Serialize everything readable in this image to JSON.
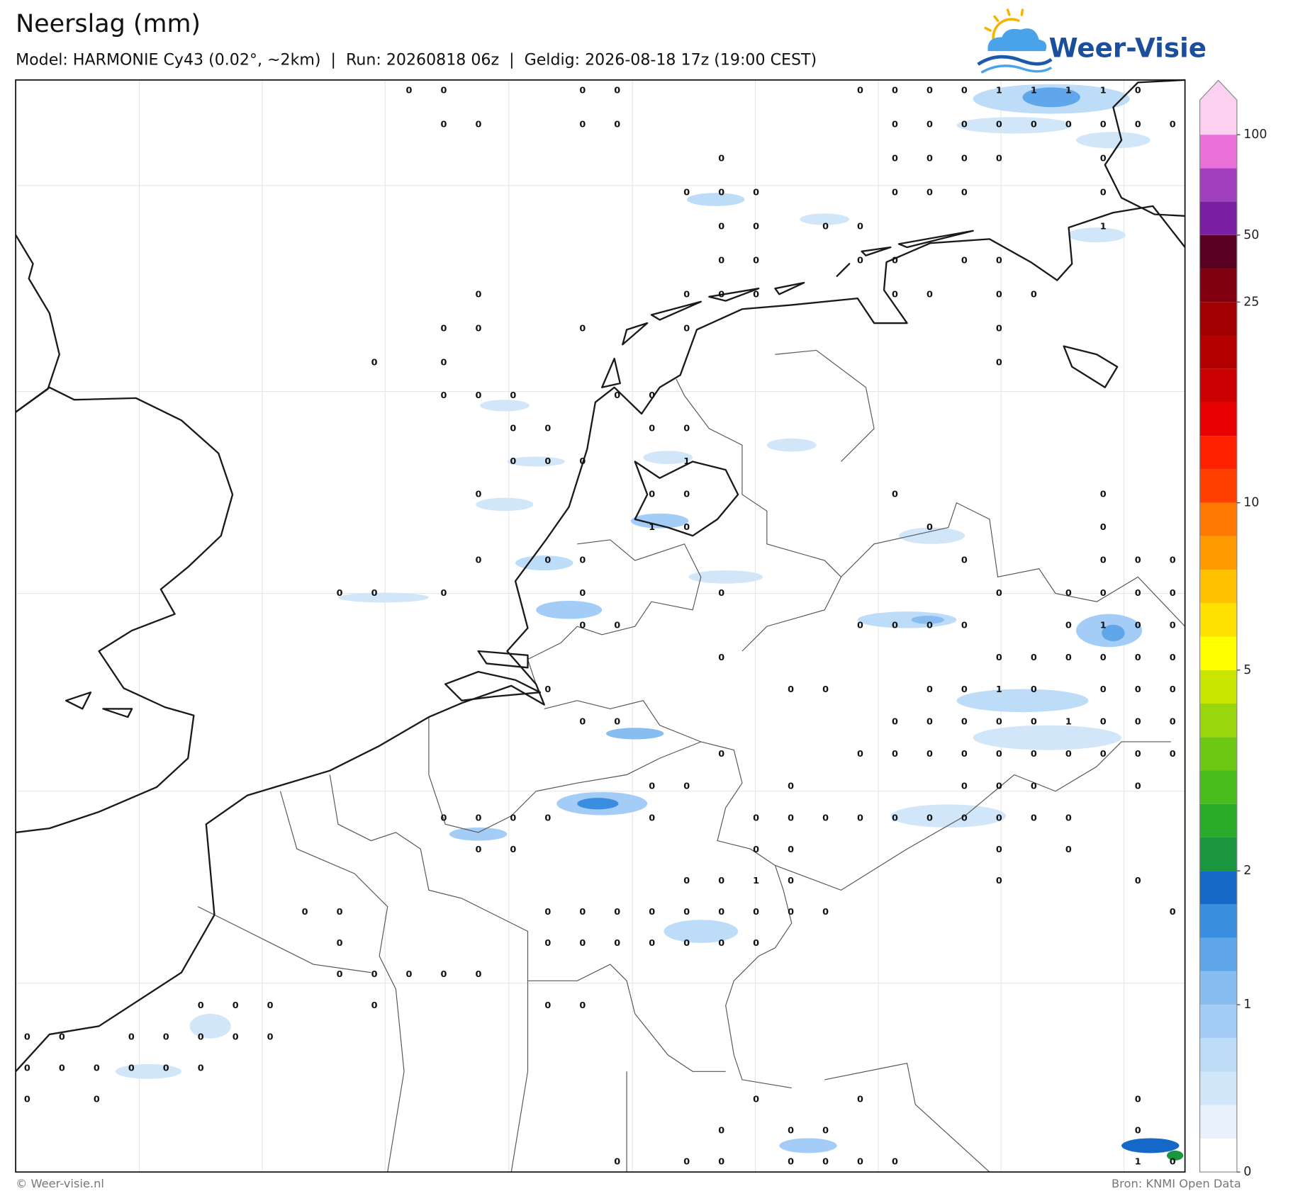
{
  "header": {
    "title": "Neerslag (mm)",
    "subtitle": "Model: HARMONIE Cy43 (0.02°, ~2km)  |  Run: 20260818 06z  |  Geldig: 2026-08-18 17z (19:00 CEST)",
    "logo": "Weer-Visie"
  },
  "map": {
    "grid": [
      [
        null,
        null,
        null,
        null,
        null,
        null,
        null,
        null,
        null,
        null,
        null,
        0,
        0,
        null,
        null,
        null,
        0,
        0,
        null,
        null,
        null,
        null,
        null,
        null,
        0,
        0,
        0,
        0,
        1,
        1,
        1,
        1,
        0,
        null
      ],
      [
        null,
        null,
        null,
        null,
        null,
        null,
        null,
        null,
        null,
        null,
        null,
        null,
        0,
        0,
        null,
        null,
        0,
        0,
        null,
        null,
        null,
        null,
        null,
        null,
        null,
        0,
        0,
        0,
        0,
        0,
        0,
        0,
        0,
        0
      ],
      [
        null,
        null,
        null,
        null,
        null,
        null,
        null,
        null,
        null,
        null,
        null,
        null,
        null,
        null,
        null,
        null,
        null,
        null,
        null,
        null,
        0,
        null,
        null,
        null,
        null,
        0,
        0,
        0,
        0,
        null,
        null,
        0,
        null,
        null
      ],
      [
        null,
        null,
        null,
        null,
        null,
        null,
        null,
        null,
        null,
        null,
        null,
        null,
        null,
        null,
        null,
        null,
        null,
        null,
        null,
        0,
        0,
        0,
        null,
        null,
        null,
        0,
        0,
        0,
        null,
        null,
        null,
        0,
        null,
        null
      ],
      [
        null,
        null,
        null,
        null,
        null,
        null,
        null,
        null,
        null,
        null,
        null,
        null,
        null,
        null,
        null,
        null,
        null,
        null,
        null,
        null,
        0,
        0,
        null,
        0,
        0,
        null,
        null,
        null,
        null,
        null,
        null,
        1,
        null,
        null
      ],
      [
        null,
        null,
        null,
        null,
        null,
        null,
        null,
        null,
        null,
        null,
        null,
        null,
        null,
        null,
        null,
        null,
        null,
        null,
        null,
        null,
        0,
        0,
        null,
        null,
        0,
        0,
        null,
        0,
        0,
        null,
        null,
        null,
        null,
        null
      ],
      [
        null,
        null,
        null,
        null,
        null,
        null,
        null,
        null,
        null,
        null,
        null,
        null,
        null,
        0,
        null,
        null,
        null,
        null,
        null,
        0,
        0,
        0,
        null,
        null,
        null,
        0,
        0,
        null,
        0,
        0,
        null,
        null,
        null,
        null
      ],
      [
        null,
        null,
        null,
        null,
        null,
        null,
        null,
        null,
        null,
        null,
        null,
        null,
        0,
        0,
        null,
        null,
        0,
        null,
        null,
        0,
        null,
        null,
        null,
        null,
        null,
        null,
        null,
        null,
        0,
        null,
        null,
        null,
        null,
        null
      ],
      [
        null,
        null,
        null,
        null,
        null,
        null,
        null,
        null,
        null,
        null,
        0,
        null,
        0,
        null,
        null,
        null,
        null,
        null,
        null,
        null,
        null,
        null,
        null,
        null,
        null,
        null,
        null,
        null,
        0,
        null,
        null,
        null,
        null,
        null
      ],
      [
        null,
        null,
        null,
        null,
        null,
        null,
        null,
        null,
        null,
        null,
        null,
        null,
        0,
        0,
        0,
        null,
        null,
        0,
        0,
        null,
        null,
        null,
        null,
        null,
        null,
        null,
        null,
        null,
        null,
        null,
        null,
        null,
        null,
        null
      ],
      [
        null,
        null,
        null,
        null,
        null,
        null,
        null,
        null,
        null,
        null,
        null,
        null,
        null,
        null,
        0,
        0,
        null,
        null,
        0,
        0,
        null,
        null,
        null,
        null,
        null,
        null,
        null,
        null,
        null,
        null,
        null,
        null,
        null,
        null
      ],
      [
        null,
        null,
        null,
        null,
        null,
        null,
        null,
        null,
        null,
        null,
        null,
        null,
        null,
        null,
        0,
        0,
        0,
        null,
        null,
        1,
        null,
        null,
        null,
        null,
        null,
        null,
        null,
        null,
        null,
        null,
        null,
        null,
        null,
        null
      ],
      [
        null,
        null,
        null,
        null,
        null,
        null,
        null,
        null,
        null,
        null,
        null,
        null,
        null,
        0,
        null,
        null,
        null,
        null,
        0,
        0,
        null,
        null,
        null,
        null,
        null,
        0,
        null,
        null,
        null,
        null,
        null,
        0,
        null,
        null
      ],
      [
        null,
        null,
        null,
        null,
        null,
        null,
        null,
        null,
        null,
        null,
        null,
        null,
        null,
        null,
        null,
        null,
        null,
        null,
        1,
        0,
        null,
        null,
        null,
        null,
        null,
        null,
        0,
        null,
        null,
        null,
        null,
        0,
        null,
        null
      ],
      [
        null,
        null,
        null,
        null,
        null,
        null,
        null,
        null,
        null,
        null,
        null,
        null,
        null,
        0,
        null,
        0,
        0,
        null,
        null,
        null,
        null,
        null,
        null,
        null,
        null,
        null,
        null,
        0,
        null,
        null,
        null,
        0,
        0,
        0
      ],
      [
        null,
        null,
        null,
        null,
        null,
        null,
        null,
        null,
        null,
        0,
        0,
        null,
        0,
        null,
        null,
        null,
        0,
        null,
        null,
        null,
        0,
        null,
        null,
        null,
        null,
        null,
        null,
        null,
        0,
        null,
        0,
        0,
        0,
        0
      ],
      [
        null,
        null,
        null,
        null,
        null,
        null,
        null,
        null,
        null,
        null,
        null,
        null,
        null,
        null,
        null,
        null,
        0,
        0,
        null,
        null,
        null,
        null,
        null,
        null,
        0,
        0,
        0,
        0,
        null,
        null,
        0,
        1,
        0,
        0
      ],
      [
        null,
        null,
        null,
        null,
        null,
        null,
        null,
        null,
        null,
        null,
        null,
        null,
        null,
        null,
        null,
        null,
        null,
        null,
        null,
        null,
        0,
        null,
        null,
        null,
        null,
        null,
        null,
        null,
        0,
        0,
        0,
        0,
        0,
        0
      ],
      [
        null,
        null,
        null,
        null,
        null,
        null,
        null,
        null,
        null,
        null,
        null,
        null,
        null,
        null,
        null,
        0,
        null,
        null,
        null,
        null,
        null,
        null,
        0,
        0,
        null,
        null,
        0,
        0,
        1,
        0,
        null,
        0,
        0,
        0
      ],
      [
        null,
        null,
        null,
        null,
        null,
        null,
        null,
        null,
        null,
        null,
        null,
        null,
        null,
        null,
        null,
        null,
        0,
        0,
        null,
        null,
        null,
        null,
        null,
        null,
        null,
        0,
        0,
        0,
        0,
        0,
        1,
        0,
        0,
        0
      ],
      [
        null,
        null,
        null,
        null,
        null,
        null,
        null,
        null,
        null,
        null,
        null,
        null,
        null,
        null,
        null,
        null,
        null,
        null,
        null,
        null,
        0,
        null,
        null,
        null,
        0,
        0,
        0,
        0,
        0,
        0,
        0,
        0,
        0,
        0
      ],
      [
        null,
        null,
        null,
        null,
        null,
        null,
        null,
        null,
        null,
        null,
        null,
        null,
        null,
        null,
        null,
        null,
        null,
        null,
        0,
        0,
        null,
        null,
        0,
        null,
        null,
        null,
        null,
        0,
        0,
        0,
        null,
        null,
        0,
        null
      ],
      [
        null,
        null,
        null,
        null,
        null,
        null,
        null,
        null,
        null,
        null,
        null,
        null,
        0,
        0,
        0,
        0,
        null,
        null,
        0,
        null,
        null,
        0,
        0,
        0,
        0,
        0,
        0,
        0,
        0,
        0,
        0,
        null,
        null,
        null
      ],
      [
        null,
        null,
        null,
        null,
        null,
        null,
        null,
        null,
        null,
        null,
        null,
        null,
        null,
        0,
        0,
        null,
        null,
        null,
        null,
        null,
        null,
        0,
        0,
        null,
        null,
        null,
        null,
        null,
        0,
        null,
        0,
        null,
        null,
        null
      ],
      [
        null,
        null,
        null,
        null,
        null,
        null,
        null,
        null,
        null,
        null,
        null,
        null,
        null,
        null,
        null,
        null,
        null,
        null,
        null,
        0,
        0,
        1,
        0,
        null,
        null,
        null,
        null,
        null,
        0,
        null,
        null,
        null,
        0,
        null
      ],
      [
        null,
        null,
        null,
        null,
        null,
        null,
        null,
        null,
        0,
        0,
        null,
        null,
        null,
        null,
        null,
        0,
        0,
        0,
        0,
        0,
        0,
        0,
        0,
        0,
        null,
        null,
        null,
        null,
        null,
        null,
        null,
        null,
        null,
        0
      ],
      [
        null,
        null,
        null,
        null,
        null,
        null,
        null,
        null,
        null,
        0,
        null,
        null,
        null,
        null,
        null,
        0,
        0,
        0,
        0,
        0,
        0,
        0,
        null,
        null,
        null,
        null,
        null,
        null,
        null,
        null,
        null,
        null,
        null,
        null
      ],
      [
        null,
        null,
        null,
        null,
        null,
        null,
        null,
        null,
        null,
        0,
        0,
        0,
        0,
        0,
        null,
        null,
        null,
        null,
        null,
        null,
        null,
        null,
        null,
        null,
        null,
        null,
        null,
        null,
        null,
        null,
        null,
        null,
        null,
        null
      ],
      [
        null,
        null,
        null,
        null,
        null,
        0,
        0,
        0,
        null,
        null,
        0,
        null,
        null,
        null,
        null,
        0,
        0,
        null,
        null,
        null,
        null,
        null,
        null,
        null,
        null,
        null,
        null,
        null,
        null,
        null,
        null,
        null,
        null,
        null
      ],
      [
        0,
        0,
        null,
        0,
        0,
        0,
        0,
        0,
        null,
        null,
        null,
        null,
        null,
        null,
        null,
        null,
        null,
        null,
        null,
        null,
        null,
        null,
        null,
        null,
        null,
        null,
        null,
        null,
        null,
        null,
        null,
        null,
        null,
        null
      ],
      [
        0,
        0,
        0,
        0,
        0,
        0,
        null,
        null,
        null,
        null,
        null,
        null,
        null,
        null,
        null,
        null,
        null,
        null,
        null,
        null,
        null,
        null,
        null,
        null,
        null,
        null,
        null,
        null,
        null,
        null,
        null,
        null,
        null,
        null
      ],
      [
        0,
        null,
        0,
        null,
        null,
        null,
        null,
        null,
        null,
        null,
        null,
        null,
        null,
        null,
        null,
        null,
        null,
        null,
        null,
        null,
        null,
        0,
        null,
        null,
        0,
        null,
        null,
        null,
        null,
        null,
        null,
        null,
        0,
        null
      ],
      [
        null,
        null,
        null,
        null,
        null,
        null,
        null,
        null,
        null,
        null,
        null,
        null,
        null,
        null,
        null,
        null,
        null,
        null,
        null,
        null,
        0,
        null,
        0,
        0,
        null,
        null,
        null,
        null,
        null,
        null,
        null,
        null,
        0,
        null
      ],
      [
        null,
        null,
        null,
        null,
        null,
        null,
        null,
        null,
        null,
        null,
        null,
        null,
        null,
        null,
        null,
        null,
        null,
        0,
        null,
        0,
        0,
        null,
        0,
        0,
        0,
        0,
        null,
        null,
        null,
        null,
        null,
        null,
        1,
        0
      ]
    ]
  },
  "colorbar": {
    "levels": [
      0,
      0.2,
      0.4,
      0.6,
      0.8,
      1,
      1.25,
      1.5,
      1.75,
      2,
      2.5,
      3,
      3.5,
      4,
      4.5,
      5,
      6,
      7,
      8,
      9,
      10,
      12.5,
      15,
      17.5,
      20,
      22.5,
      25,
      37.5,
      50,
      70,
      85,
      100
    ],
    "colors": [
      "#ffffff",
      "#e8f1fc",
      "#d2e6fa",
      "#bcdcf8",
      "#a3cdf6",
      "#88bdf1",
      "#5fa6ea",
      "#3a8ee0",
      "#1668c8",
      "#1a9641",
      "#2aab2a",
      "#48bd1c",
      "#6cc812",
      "#9ad60c",
      "#c8e600",
      "#ffff00",
      "#ffe000",
      "#ffc000",
      "#ff9a00",
      "#ff7800",
      "#ff4000",
      "#ff2000",
      "#e60000",
      "#cc0000",
      "#b40000",
      "#a00000",
      "#800010",
      "#5a0020",
      "#7b1fa2",
      "#a040c0",
      "#e870d8"
    ],
    "over_color": "#fcd0f0",
    "ticks": [
      0,
      1,
      2,
      5,
      10,
      25,
      50,
      100
    ]
  },
  "footer": {
    "copyright": "© Weer-visie.nl",
    "source": "Bron: KNMI Open Data"
  }
}
